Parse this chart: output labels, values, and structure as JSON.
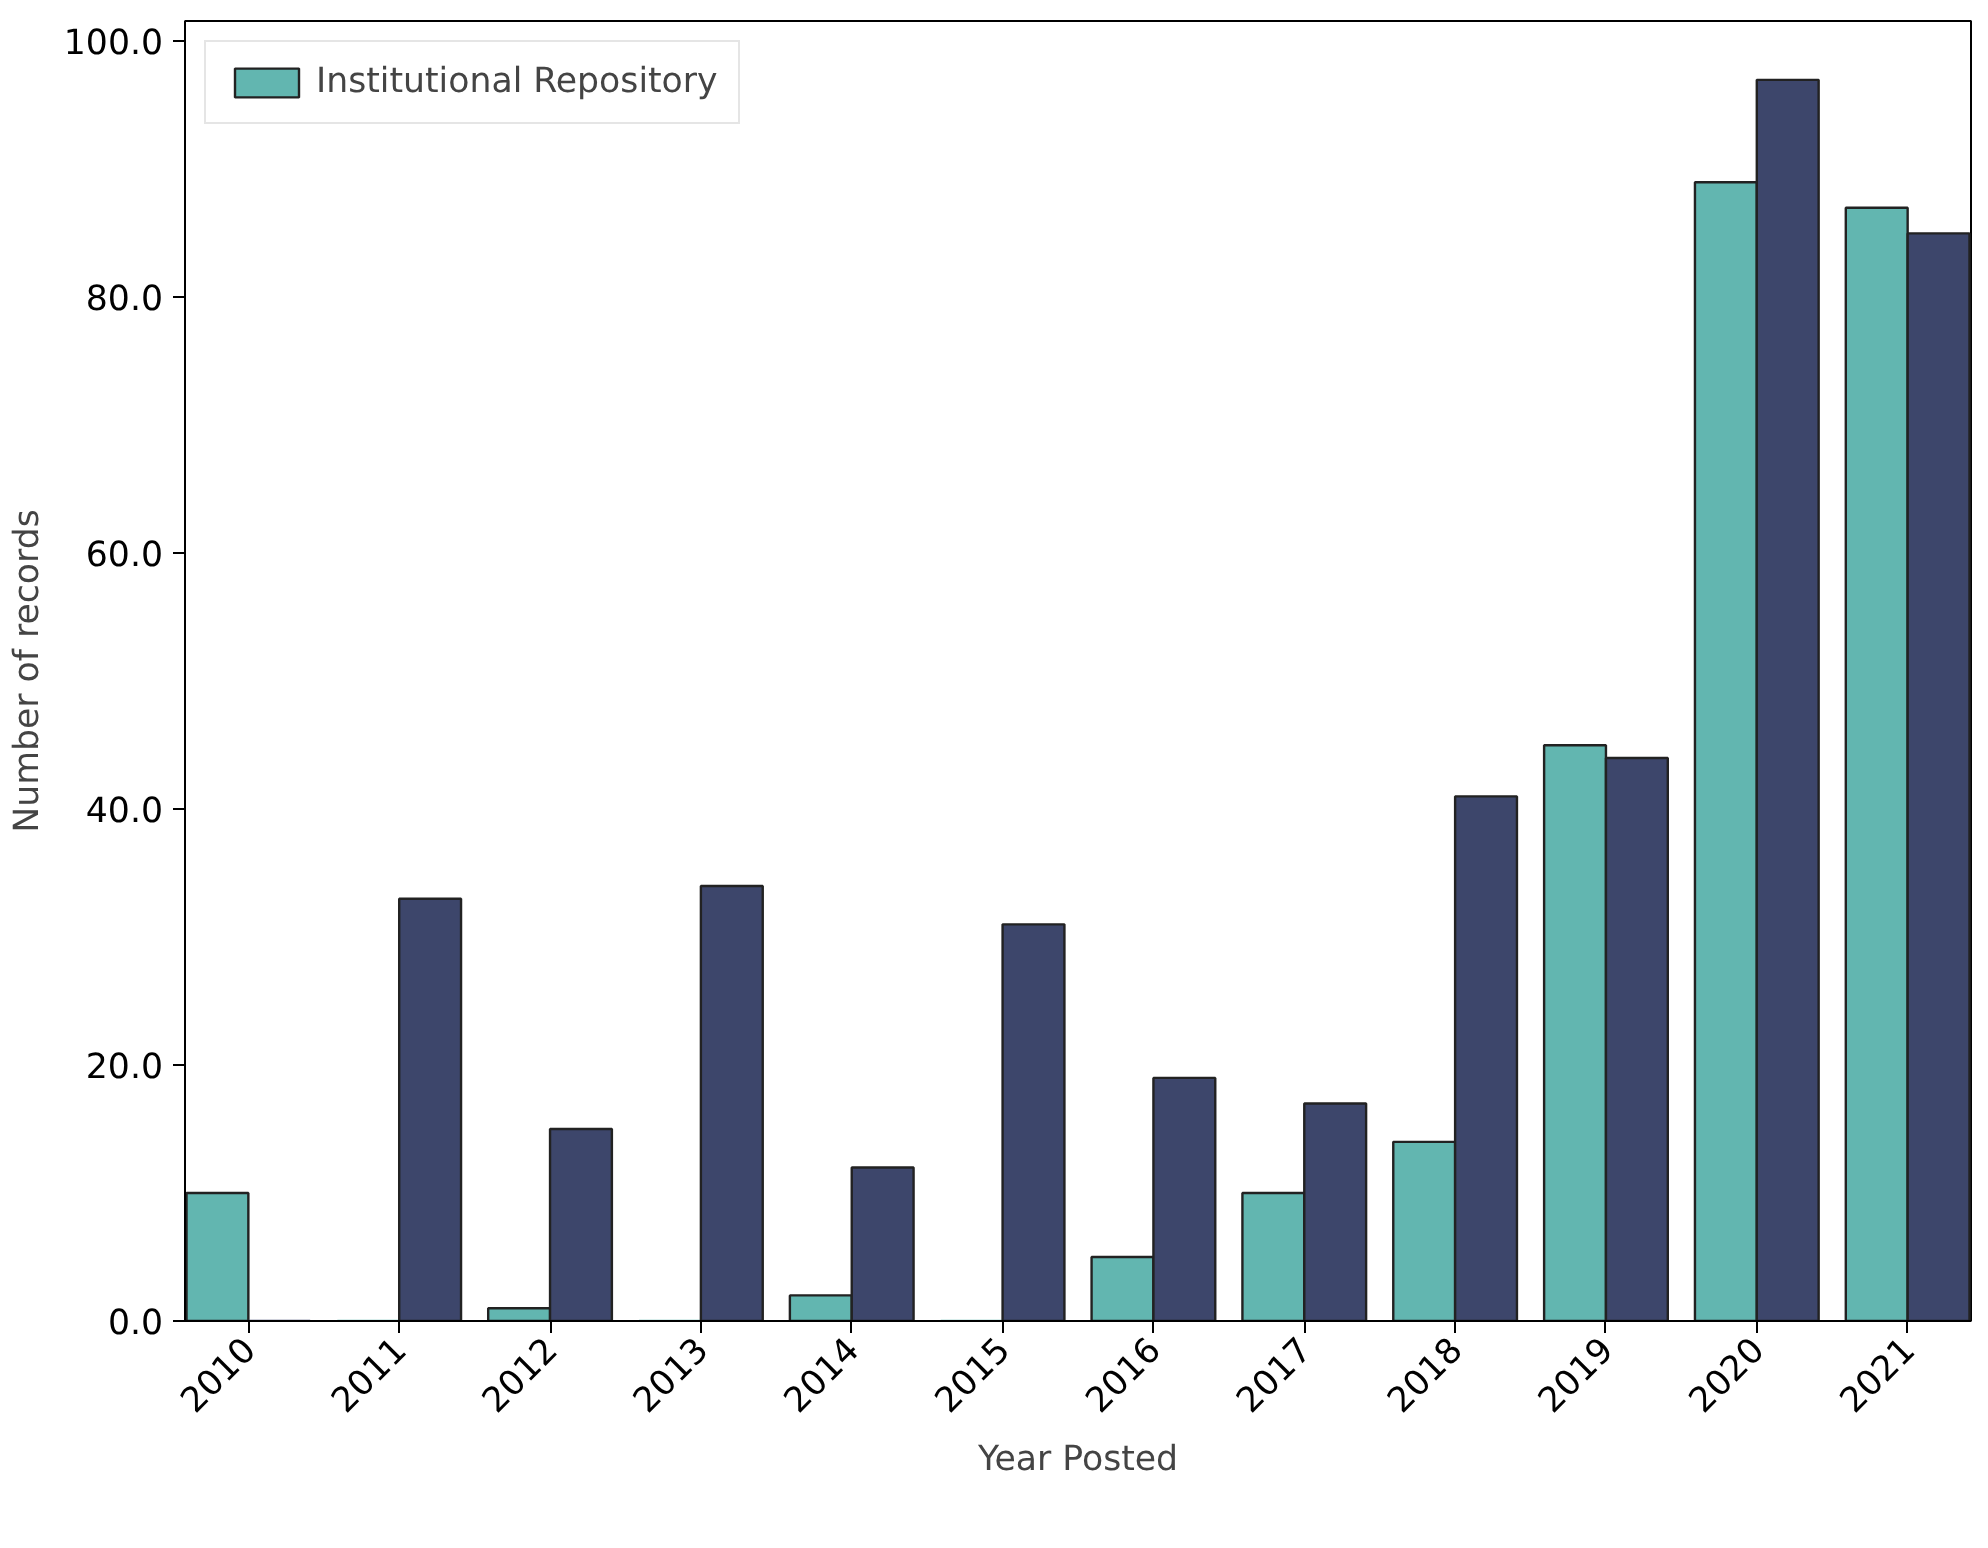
{
  "chart_data": {
    "type": "bar",
    "xlabel": "Year Posted",
    "ylabel": "Number of records",
    "categories": [
      "2010",
      "2011",
      "2012",
      "2013",
      "2014",
      "2015",
      "2016",
      "2017",
      "2018",
      "2019",
      "2020",
      "2021"
    ],
    "series": [
      {
        "name": "Institutional Repository",
        "color": "#62b6b0",
        "values": [
          10,
          0,
          1,
          0,
          2,
          0,
          5,
          10,
          14,
          45,
          89,
          87
        ]
      },
      {
        "color": "#3d466b",
        "values": [
          0,
          33,
          15,
          34,
          12,
          31,
          19,
          17,
          41,
          44,
          97,
          85
        ]
      }
    ],
    "ylim": [
      0,
      101.6
    ],
    "yticks": [
      {
        "value": 0,
        "label": "0.0"
      },
      {
        "value": 20,
        "label": "20.0"
      },
      {
        "value": 40,
        "label": "40.0"
      },
      {
        "value": 60,
        "label": "60.0"
      },
      {
        "value": 80,
        "label": "80.0"
      },
      {
        "value": 100,
        "label": "100.0"
      }
    ],
    "grid": false,
    "legend": "top left"
  }
}
